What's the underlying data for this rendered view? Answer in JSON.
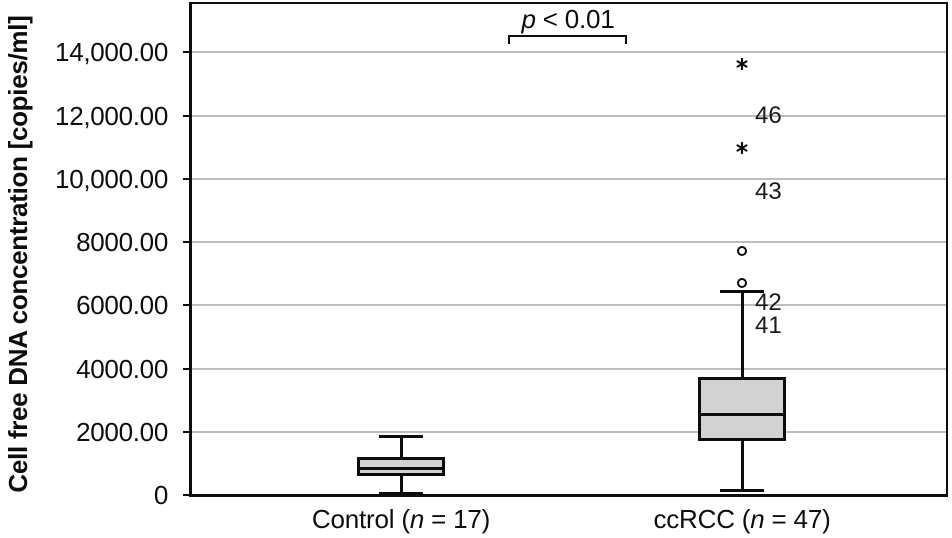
{
  "figure": {
    "background": "#ffffff"
  },
  "y_axis": {
    "title": "Cell free DNA concentration [copies/ml]",
    "ticks": [
      {
        "value": 14000,
        "label": "14,000.00"
      },
      {
        "value": 12000,
        "label": "12,000.00"
      },
      {
        "value": 10000,
        "label": "10,000.00"
      },
      {
        "value": 8000,
        "label": "8000.00"
      },
      {
        "value": 6000,
        "label": "6000.00"
      },
      {
        "value": 4000,
        "label": "4000.00"
      },
      {
        "value": 2000,
        "label": "2000.00"
      },
      {
        "value": 0,
        "label": "0"
      }
    ]
  },
  "x_axis": {
    "groups": [
      {
        "label_prefix": "Control (",
        "n_symbol": "n",
        "label_suffix": " = 17)",
        "full_label": "Control (n = 17)"
      },
      {
        "label_prefix": "ccRCC (",
        "n_symbol": "n",
        "label_suffix": " = 47)",
        "full_label": "ccRCC (n = 47)"
      }
    ]
  },
  "annotation": {
    "p_symbol": "p",
    "p_rest": " < 0.01",
    "full": "p < 0.01"
  },
  "colors": {
    "box_fill": "#d2d2d2",
    "line": "#0d0d0d",
    "gridline": "#bdbdbd",
    "background": "#ffffff"
  },
  "chart_data": {
    "type": "boxplot",
    "title": "",
    "xlabel": "",
    "ylabel": "Cell free DNA concentration [copies/ml]",
    "ylim": [
      0,
      15560
    ],
    "grid": "horizontal",
    "gridline_values": [
      2000,
      4000,
      6000,
      8000,
      10000,
      12000,
      14000
    ],
    "significance": {
      "text": "p < 0.01",
      "between": [
        "Control (n = 17)",
        "ccRCC (n = 47)"
      ]
    },
    "groups": [
      {
        "category": "Control (n = 17)",
        "n": 17,
        "stats": {
          "whisker_low": 60,
          "q1": 640,
          "median": 850,
          "q3": 1160,
          "whisker_high": 1860
        },
        "outliers": []
      },
      {
        "category": "ccRCC (n = 47)",
        "n": 47,
        "stats": {
          "whisker_low": 140,
          "q1": 1760,
          "median": 2550,
          "q3": 3680,
          "whisker_high": 6450
        },
        "outliers": [
          {
            "value": 6710,
            "marker": "circle",
            "case_label": "41",
            "label_dy": 43
          },
          {
            "value": 7730,
            "marker": "circle",
            "case_label": "42",
            "label_dy": 52
          },
          {
            "value": 11000,
            "marker": "star",
            "case_label": "43",
            "label_dy": 45
          },
          {
            "value": 13650,
            "marker": "star",
            "case_label": "46",
            "label_dy": 53
          }
        ]
      }
    ]
  }
}
